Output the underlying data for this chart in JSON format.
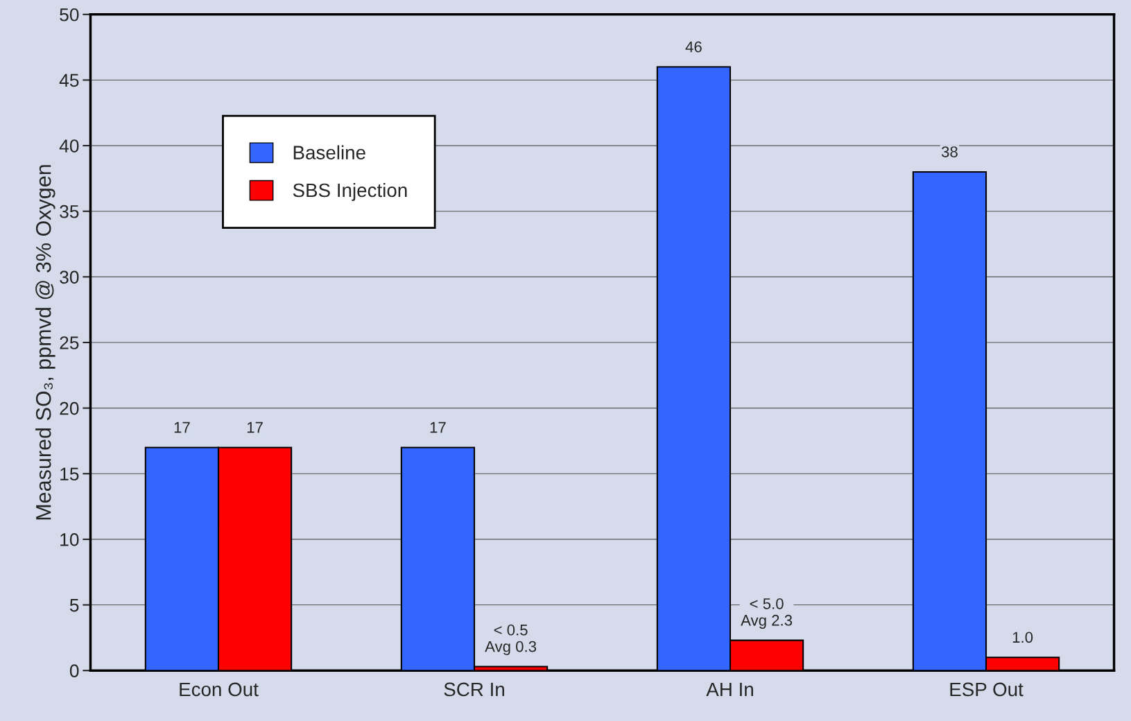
{
  "chart_data": {
    "type": "bar",
    "ylabel": "Measured SO₃, ppmvd @ 3% Oxygen",
    "categories": [
      "Econ Out",
      "SCR In",
      "AH In",
      "ESP Out"
    ],
    "series": [
      {
        "name": "Baseline",
        "color": "#3366ff",
        "values": [
          17,
          17,
          46,
          38
        ],
        "value_labels": [
          "17",
          "17",
          "46",
          "38"
        ]
      },
      {
        "name": "SBS Injection",
        "color": "#ff0000",
        "values": [
          17,
          0.3,
          2.3,
          1.0
        ],
        "value_labels": [
          "17",
          "< 0.5\nAvg 0.3",
          "< 5.0\nAvg 2.3",
          "1.0"
        ]
      }
    ],
    "ylim": [
      0,
      50
    ],
    "yticks": [
      0,
      5,
      10,
      15,
      20,
      25,
      30,
      35,
      40,
      45,
      50
    ],
    "grid": "y",
    "legend": "top left"
  }
}
